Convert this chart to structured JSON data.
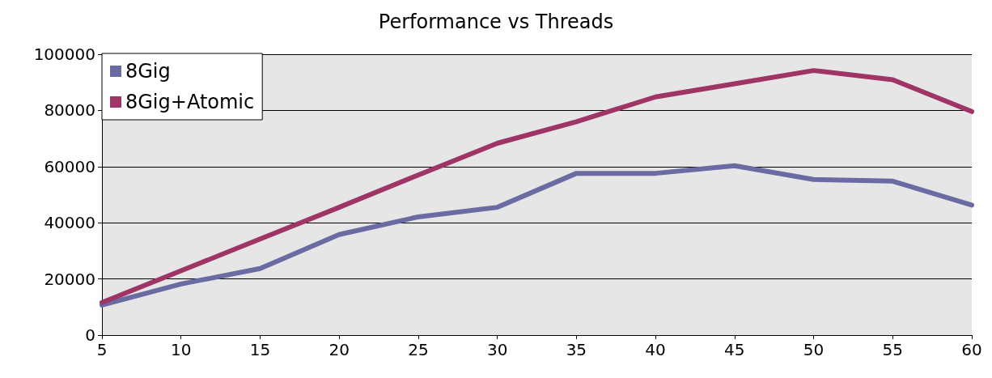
{
  "chart_data": {
    "type": "line",
    "title": "Performance vs Threads",
    "x": [
      5,
      10,
      15,
      20,
      25,
      30,
      35,
      40,
      45,
      50,
      55,
      60
    ],
    "series": [
      {
        "name": "8Gig",
        "color": "#6b6ba3",
        "values": [
          10700,
          18200,
          23700,
          35800,
          42100,
          45500,
          57600,
          57600,
          60300,
          55400,
          54800,
          46300
        ]
      },
      {
        "name": "8Gig+Atomic",
        "color": "#9e3566",
        "values": [
          11600,
          22900,
          34200,
          45500,
          57000,
          68300,
          76000,
          84800,
          89500,
          94200,
          90900,
          79600
        ]
      }
    ],
    "xlim": [
      5,
      60
    ],
    "xticks": [
      5,
      10,
      15,
      20,
      25,
      30,
      35,
      40,
      45,
      50,
      55,
      60
    ],
    "ylim": [
      0,
      100000
    ],
    "yticks": [
      0,
      20000,
      40000,
      60000,
      80000,
      100000
    ],
    "grid": "y",
    "legend": "top left",
    "marker": "none",
    "line_style": "solid"
  }
}
